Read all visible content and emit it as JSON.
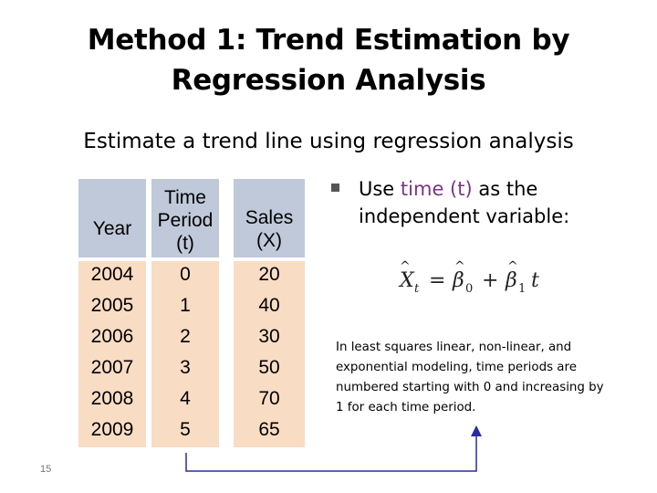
{
  "slide": {
    "title_line1": "Method 1: Trend Estimation by",
    "title_line2": "Regression Analysis",
    "subtitle": "Estimate a trend line using regression analysis",
    "page_number": "15"
  },
  "table": {
    "headers": {
      "year": [
        "Year"
      ],
      "period": [
        "Time",
        "Period",
        "(t)"
      ],
      "sales": [
        "Sales",
        "(X)"
      ]
    },
    "rows": [
      {
        "year": "2004",
        "t": "0",
        "x": "20"
      },
      {
        "year": "2005",
        "t": "1",
        "x": "40"
      },
      {
        "year": "2006",
        "t": "2",
        "x": "30"
      },
      {
        "year": "2007",
        "t": "3",
        "x": "50"
      },
      {
        "year": "2008",
        "t": "4",
        "x": "70"
      },
      {
        "year": "2009",
        "t": "5",
        "x": "65"
      }
    ]
  },
  "bullet": {
    "prefix": "Use ",
    "highlight": "time (t)",
    "suffix": " as the independent variable:"
  },
  "formula": {
    "lhs_symbol": "X",
    "lhs_sub": "t",
    "equals": "=",
    "b0_symbol": "β",
    "b0_sub": "0",
    "plus": "+",
    "b1_symbol": "β",
    "b1_sub": "1",
    "var": "t"
  },
  "note": "In least squares linear, non-linear, and exponential modeling, time periods are numbered starting with 0 and increasing by 1 for each time period.",
  "colors": {
    "header_bg": "#bfc9d9",
    "body_bg": "#f9dcc4",
    "highlight": "#7a3585",
    "arrow": "#2a2aa8"
  }
}
